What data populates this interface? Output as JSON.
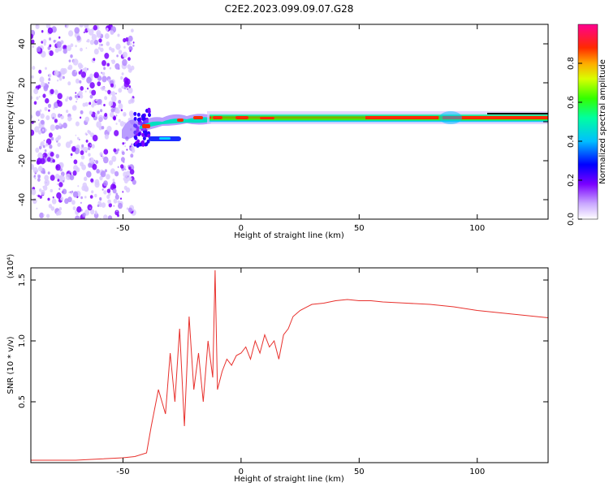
{
  "chart_data": [
    {
      "type": "heatmap",
      "title": "C2E2.2023.099.09.07.G28",
      "xlabel": "Height of straight line (km)",
      "ylabel": "Frequency (Hz)",
      "xlim": [
        -89,
        130
      ],
      "ylim": [
        -50,
        50
      ],
      "xticks": [
        -50,
        0,
        50,
        100
      ],
      "yticks": [
        -40,
        -20,
        0,
        20,
        40
      ],
      "colorbar": {
        "label": "Normalized spectral amplitude",
        "range": [
          0,
          1
        ],
        "ticks": [
          "0.0",
          "0.2",
          "0.4",
          "0.6",
          "0.8"
        ],
        "colormap": "rainbow (white → purple → blue → cyan → green → yellow → red → magenta)"
      },
      "description_bands": [
        {
          "x_range": [
            -89,
            -45
          ],
          "frequency_range": [
            -50,
            50
          ],
          "amplitude": "low, diffuse noise"
        },
        {
          "x_range": [
            -45,
            -15
          ],
          "center_frequency": 0,
          "amplitude": "medium-high, broken"
        },
        {
          "x_range": [
            -15,
            130
          ],
          "center_frequency": 1,
          "amplitude": "high (up to ~1.0)"
        }
      ]
    },
    {
      "type": "line",
      "xlabel": "Height of straight line (km)",
      "ylabel": "SNR (10 * v/v)",
      "multiplier": "(x10⁴)",
      "xlim": [
        -89,
        130
      ],
      "ylim": [
        0,
        1.6
      ],
      "xticks": [
        -50,
        0,
        50,
        100
      ],
      "yticks": [
        "0.5",
        "1.0",
        "1.5"
      ],
      "series": [
        {
          "color": "#e8302c",
          "x": [
            -89,
            -80,
            -70,
            -60,
            -50,
            -45,
            -40,
            -38,
            -35,
            -32,
            -30,
            -28,
            -26,
            -24,
            -22,
            -20,
            -18,
            -16,
            -14,
            -12,
            -11,
            -10,
            -8,
            -6,
            -4,
            -2,
            0,
            2,
            4,
            6,
            8,
            10,
            12,
            14,
            16,
            18,
            20,
            22,
            25,
            30,
            35,
            40,
            45,
            50,
            55,
            60,
            70,
            80,
            90,
            100,
            110,
            120,
            130
          ],
          "y": [
            0.02,
            0.02,
            0.02,
            0.03,
            0.04,
            0.05,
            0.08,
            0.3,
            0.6,
            0.4,
            0.9,
            0.5,
            1.1,
            0.3,
            1.2,
            0.6,
            0.9,
            0.5,
            1.0,
            0.7,
            1.58,
            0.6,
            0.75,
            0.85,
            0.8,
            0.88,
            0.9,
            0.95,
            0.85,
            1.0,
            0.9,
            1.05,
            0.95,
            1.0,
            0.85,
            1.05,
            1.1,
            1.2,
            1.25,
            1.3,
            1.31,
            1.33,
            1.34,
            1.33,
            1.33,
            1.32,
            1.31,
            1.3,
            1.28,
            1.25,
            1.23,
            1.21,
            1.19
          ]
        }
      ]
    }
  ]
}
